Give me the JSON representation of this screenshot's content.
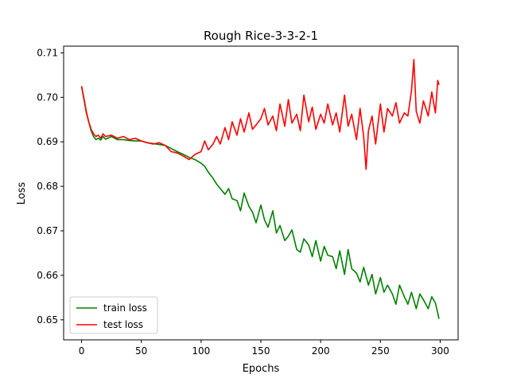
{
  "chart_data": {
    "type": "line",
    "title": "Rough Rice-3-3-2-1",
    "xlabel": "Epochs",
    "ylabel": "Loss",
    "xlim": [
      -15,
      315
    ],
    "ylim": [
      0.6455,
      0.7115
    ],
    "xticks": [
      0,
      50,
      100,
      150,
      200,
      250,
      300
    ],
    "yticks": [
      0.65,
      0.66,
      0.67,
      0.68,
      0.69,
      0.7,
      0.71
    ],
    "ytick_labels": [
      "0.65",
      "0.66",
      "0.67",
      "0.68",
      "0.69",
      "0.70",
      "0.71"
    ],
    "grid": false,
    "legend_position": "lower-left",
    "series": [
      {
        "name": "train loss",
        "color": "#008000",
        "x": [
          0,
          2,
          4,
          6,
          8,
          10,
          12,
          14,
          16,
          18,
          20,
          25,
          30,
          35,
          40,
          45,
          50,
          55,
          60,
          65,
          70,
          75,
          80,
          85,
          90,
          95,
          100,
          103,
          106,
          110,
          113,
          116,
          120,
          123,
          126,
          130,
          133,
          136,
          140,
          143,
          146,
          150,
          153,
          156,
          160,
          163,
          166,
          170,
          173,
          176,
          180,
          183,
          186,
          190,
          193,
          196,
          200,
          203,
          206,
          210,
          213,
          216,
          220,
          223,
          226,
          230,
          233,
          236,
          240,
          243,
          246,
          250,
          253,
          256,
          260,
          263,
          266,
          270,
          273,
          276,
          280,
          283,
          286,
          290,
          293,
          296,
          298,
          299
        ],
        "y": [
          0.7025,
          0.6995,
          0.6965,
          0.6945,
          0.6925,
          0.6912,
          0.6905,
          0.6908,
          0.6904,
          0.6912,
          0.6906,
          0.6912,
          0.6905,
          0.6905,
          0.6903,
          0.6902,
          0.6902,
          0.6898,
          0.6896,
          0.6894,
          0.6892,
          0.6885,
          0.6878,
          0.6872,
          0.6865,
          0.686,
          0.6852,
          0.6845,
          0.6832,
          0.6818,
          0.6805,
          0.6795,
          0.6782,
          0.6795,
          0.6772,
          0.6768,
          0.6745,
          0.6785,
          0.6755,
          0.6742,
          0.6718,
          0.6758,
          0.6725,
          0.6708,
          0.6745,
          0.6695,
          0.6712,
          0.6678,
          0.6688,
          0.6702,
          0.6658,
          0.6652,
          0.6682,
          0.6668,
          0.6642,
          0.6678,
          0.6632,
          0.6665,
          0.6645,
          0.6642,
          0.6615,
          0.6655,
          0.6602,
          0.6658,
          0.6615,
          0.6605,
          0.6585,
          0.6618,
          0.6578,
          0.6602,
          0.6558,
          0.6595,
          0.6562,
          0.6578,
          0.6558,
          0.6535,
          0.6578,
          0.6552,
          0.6535,
          0.6562,
          0.6525,
          0.6558,
          0.6545,
          0.6525,
          0.6552,
          0.6538,
          0.6515,
          0.6502
        ]
      },
      {
        "name": "test loss",
        "color": "#ff0000",
        "x": [
          0,
          2,
          4,
          6,
          8,
          10,
          12,
          14,
          16,
          18,
          20,
          25,
          30,
          35,
          40,
          45,
          50,
          55,
          60,
          65,
          70,
          75,
          80,
          85,
          90,
          95,
          100,
          103,
          106,
          110,
          113,
          116,
          120,
          123,
          126,
          130,
          133,
          136,
          140,
          143,
          146,
          150,
          153,
          156,
          160,
          163,
          166,
          170,
          173,
          176,
          180,
          183,
          186,
          190,
          193,
          196,
          200,
          203,
          206,
          210,
          213,
          216,
          220,
          223,
          226,
          230,
          233,
          236,
          238,
          240,
          243,
          246,
          250,
          253,
          256,
          260,
          263,
          266,
          270,
          273,
          276,
          278,
          280,
          283,
          286,
          290,
          293,
          296,
          298,
          299
        ],
        "y": [
          0.7025,
          0.6998,
          0.6968,
          0.6945,
          0.6928,
          0.6918,
          0.6912,
          0.6915,
          0.6908,
          0.6918,
          0.6912,
          0.6915,
          0.6908,
          0.6912,
          0.6905,
          0.6908,
          0.6902,
          0.6898,
          0.6895,
          0.6898,
          0.6892,
          0.6878,
          0.6875,
          0.6868,
          0.686,
          0.6872,
          0.6878,
          0.6902,
          0.6882,
          0.6895,
          0.6912,
          0.6895,
          0.6932,
          0.6905,
          0.6945,
          0.6915,
          0.6952,
          0.6922,
          0.6965,
          0.6928,
          0.6938,
          0.6952,
          0.6975,
          0.6938,
          0.6958,
          0.6925,
          0.6985,
          0.6935,
          0.6995,
          0.6942,
          0.6962,
          0.6925,
          0.7005,
          0.6945,
          0.6978,
          0.6928,
          0.6962,
          0.6942,
          0.6985,
          0.6938,
          0.6965,
          0.6922,
          0.7005,
          0.6935,
          0.6962,
          0.6905,
          0.6975,
          0.6912,
          0.6838,
          0.6925,
          0.6958,
          0.6895,
          0.6985,
          0.6922,
          0.6975,
          0.6958,
          0.6988,
          0.6942,
          0.6965,
          0.6958,
          0.7015,
          0.7085,
          0.6968,
          0.6942,
          0.6992,
          0.6958,
          0.7012,
          0.6965,
          0.7038,
          0.7028
        ]
      }
    ]
  }
}
